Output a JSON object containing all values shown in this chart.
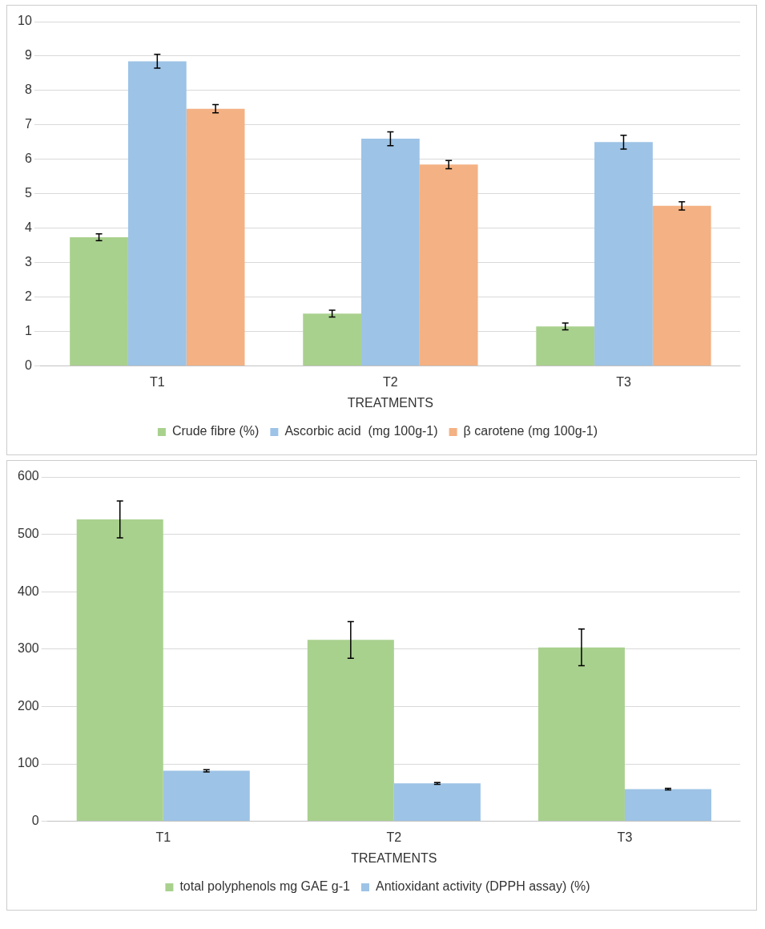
{
  "chart_data": [
    {
      "type": "bar",
      "xlabel": "TREATMENTS",
      "categories": [
        "T1",
        "T2",
        "T3"
      ],
      "ylim": [
        0,
        10
      ],
      "yticks": [
        0,
        1,
        2,
        3,
        4,
        5,
        6,
        7,
        8,
        9,
        10
      ],
      "grid": "y",
      "legend": "bottom",
      "series": [
        {
          "name": "Crude fibre (%)",
          "color": "#a9d18e",
          "values": [
            3.74,
            1.52,
            1.15
          ],
          "errors": [
            0.1,
            0.1,
            0.1
          ]
        },
        {
          "name": "Ascorbic acid  (mg 100g-1)",
          "color": "#9dc3e6",
          "values": [
            8.85,
            6.6,
            6.5
          ],
          "errors": [
            0.2,
            0.2,
            0.2
          ]
        },
        {
          "name": "β carotene (mg 100g-1)",
          "color": "#f4b183",
          "values": [
            7.47,
            5.85,
            4.65
          ],
          "errors": [
            0.12,
            0.12,
            0.12
          ]
        }
      ]
    },
    {
      "type": "bar",
      "xlabel": "TREATMENTS",
      "categories": [
        "T1",
        "T2",
        "T3"
      ],
      "ylim": [
        0,
        600
      ],
      "yticks": [
        0,
        100,
        200,
        300,
        400,
        500,
        600
      ],
      "grid": "y",
      "legend": "bottom",
      "series": [
        {
          "name": "total polyphenols mg GAE g-1",
          "color": "#a9d18e",
          "values": [
            526,
            316,
            303
          ],
          "errors": [
            32,
            32,
            32
          ]
        },
        {
          "name": "Antioxidant activity (DPPH assay) (%)",
          "color": "#9dc3e6",
          "values": [
            88,
            66,
            56
          ],
          "errors": [
            2,
            1.5,
            1.5
          ]
        }
      ]
    }
  ]
}
